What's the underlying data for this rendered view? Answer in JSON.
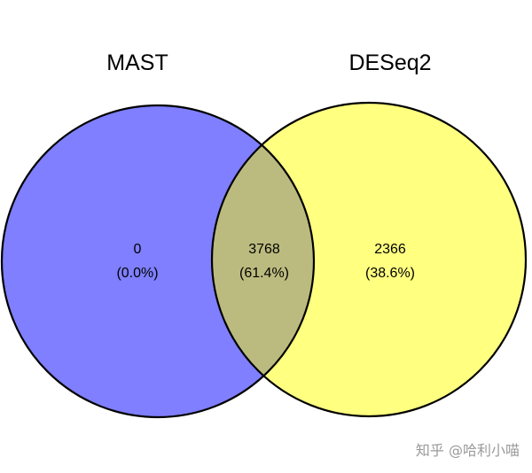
{
  "chart_data": {
    "type": "venn",
    "sets": [
      {
        "name": "MAST",
        "color": "#7f7fff"
      },
      {
        "name": "DESeq2",
        "color": "#ffff80"
      }
    ],
    "overlap_color": "#bcbb7f",
    "regions": [
      {
        "id": "mast_only",
        "count": "0",
        "percent": "(0.0%)"
      },
      {
        "id": "both",
        "count": "3768",
        "percent": "(61.4%)"
      },
      {
        "id": "deseq2_only",
        "count": "2366",
        "percent": "(38.6%)"
      }
    ]
  },
  "watermark": "知乎 @哈利小喵"
}
